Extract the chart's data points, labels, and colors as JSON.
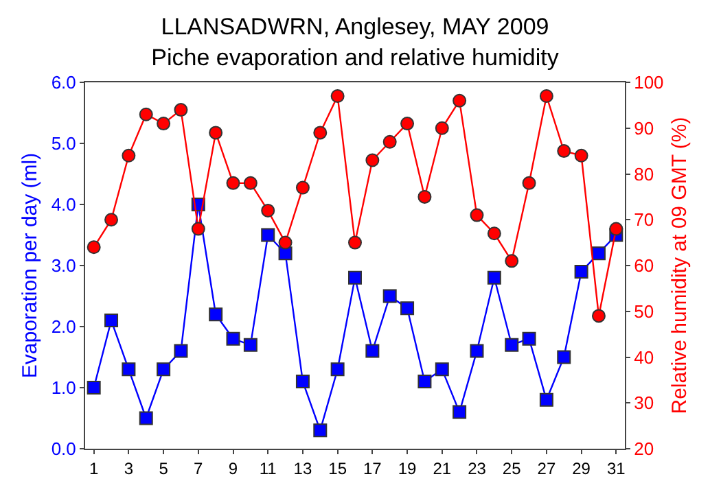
{
  "chart_data": {
    "type": "line",
    "title": "LLANSADWRN, Anglesey, MAY 2009",
    "subtitle": "Piche evaporation and relative humidity",
    "ylabel": "Evaporation per day (ml)",
    "y2label": "Relative humidity at 09 GMT (%)",
    "x": [
      1,
      2,
      3,
      4,
      5,
      6,
      7,
      8,
      9,
      10,
      11,
      12,
      13,
      14,
      15,
      16,
      17,
      18,
      19,
      20,
      21,
      22,
      23,
      24,
      25,
      26,
      27,
      28,
      29,
      30,
      31
    ],
    "xlim": [
      0.5,
      31.5
    ],
    "xticks": [
      1,
      3,
      5,
      7,
      9,
      11,
      13,
      15,
      17,
      19,
      21,
      23,
      25,
      27,
      29,
      31
    ],
    "ylim": [
      0,
      6
    ],
    "yticks": [
      {
        "value": 0,
        "label": "0.0"
      },
      {
        "value": 1,
        "label": "1.0"
      },
      {
        "value": 2,
        "label": "2.0"
      },
      {
        "value": 3,
        "label": "3.0"
      },
      {
        "value": 4,
        "label": "4.0"
      },
      {
        "value": 5,
        "label": "5.0"
      },
      {
        "value": 6,
        "label": "6.0"
      }
    ],
    "y2lim": [
      20,
      100
    ],
    "y2ticks": [
      20,
      30,
      40,
      50,
      60,
      70,
      80,
      90,
      100
    ],
    "series": [
      {
        "color": "#0000ff",
        "marker": "square",
        "values": [
          1.0,
          2.1,
          1.3,
          0.5,
          1.3,
          1.6,
          4.0,
          2.2,
          1.8,
          1.7,
          3.5,
          3.2,
          1.1,
          0.3,
          1.3,
          2.8,
          1.6,
          2.5,
          2.3,
          1.1,
          1.3,
          0.6,
          1.6,
          2.8,
          1.7,
          1.8,
          0.8,
          1.5,
          2.9,
          3.2,
          3.5
        ]
      },
      {
        "color": "#ff0000",
        "marker": "circle",
        "axis": "y2",
        "values": [
          64,
          70,
          84,
          93,
          91,
          94,
          68,
          89,
          78,
          78,
          72,
          65,
          77,
          89,
          97,
          65,
          83,
          87,
          91,
          75,
          90,
          96,
          71,
          67,
          61,
          78,
          97,
          85,
          84,
          49,
          68
        ]
      }
    ]
  }
}
